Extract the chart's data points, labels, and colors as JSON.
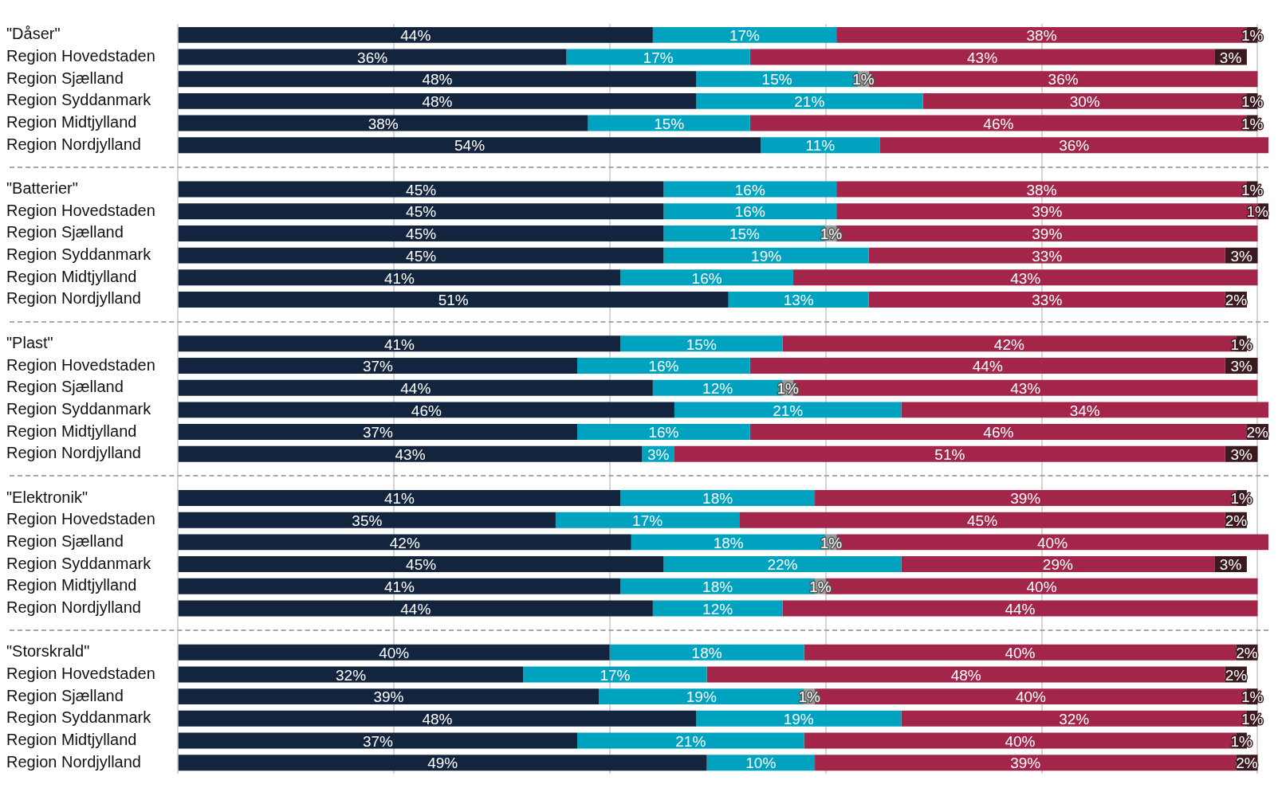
{
  "chart_data": {
    "type": "bar",
    "orientation": "horizontal",
    "stacked": true,
    "categories": [
      "\"Dåser\"",
      "Region Hovedstaden",
      "Region Sjælland",
      "Region Syddanmark",
      "Region Midtjylland",
      "Region Nordjylland",
      null,
      "\"Batterier\"",
      "Region Hovedstaden",
      "Region Sjælland",
      "Region Syddanmark",
      "Region Midtjylland",
      "Region Nordjylland",
      null,
      "\"Plast\"",
      "Region Hovedstaden",
      "Region Sjælland",
      "Region Syddanmark",
      "Region Midtjylland",
      "Region Nordjylland",
      null,
      "\"Elektronik\"",
      "Region Hovedstaden",
      "Region Sjælland",
      "Region Syddanmark",
      "Region Midtjylland",
      "Region Nordjylland",
      null,
      "\"Storskrald\"",
      "Region Hovedstaden",
      "Region Sjælland",
      "Region Syddanmark",
      "Region Midtjylland",
      "Region Nordjylland"
    ],
    "series": [
      {
        "color": "#13243f",
        "values": [
          44,
          36,
          48,
          48,
          38,
          54,
          null,
          45,
          45,
          45,
          45,
          41,
          51,
          null,
          41,
          37,
          44,
          46,
          37,
          43,
          null,
          41,
          35,
          42,
          45,
          41,
          44,
          null,
          40,
          32,
          39,
          48,
          37,
          49
        ],
        "value_labels": [
          "44%",
          "36%",
          "48%",
          "48%",
          "38%",
          "54%",
          null,
          "45%",
          "45%",
          "45%",
          "45%",
          "41%",
          "51%",
          null,
          "41%",
          "37%",
          "44%",
          "46%",
          "37%",
          "43%",
          null,
          "41%",
          "35%",
          "42%",
          "45%",
          "41%",
          "44%",
          null,
          "40%",
          "32%",
          "39%",
          "48%",
          "37%",
          "49%"
        ]
      },
      {
        "color": "#00a3bf",
        "values": [
          17,
          17,
          15,
          21,
          15,
          11,
          null,
          16,
          16,
          15,
          19,
          16,
          13,
          null,
          15,
          16,
          12,
          21,
          16,
          3,
          null,
          18,
          17,
          18,
          22,
          18,
          12,
          null,
          18,
          17,
          19,
          19,
          21,
          10
        ],
        "value_labels": [
          "17%",
          "17%",
          "15%",
          "21%",
          "15%",
          "11%",
          null,
          "16%",
          "16%",
          "15%",
          "19%",
          "16%",
          "13%",
          null,
          "15%",
          "16%",
          "12%",
          "21%",
          "16%",
          "3%",
          null,
          "18%",
          "17%",
          "18%",
          "22%",
          "18%",
          "12%",
          null,
          "18%",
          "17%",
          "19%",
          "19%",
          "21%",
          "10%"
        ]
      },
      {
        "color": "#9a9a9a",
        "values": [
          null,
          null,
          1,
          null,
          null,
          null,
          null,
          null,
          null,
          1,
          null,
          null,
          null,
          null,
          null,
          null,
          1,
          null,
          null,
          null,
          null,
          null,
          null,
          1,
          null,
          1,
          null,
          null,
          null,
          null,
          1,
          null,
          null,
          null
        ],
        "value_labels": [
          null,
          null,
          "1%",
          null,
          null,
          null,
          null,
          null,
          null,
          "1%",
          null,
          null,
          null,
          null,
          null,
          null,
          "1%",
          null,
          null,
          null,
          null,
          null,
          null,
          "1%",
          null,
          "1%",
          null,
          null,
          null,
          null,
          "1%",
          null,
          null,
          null
        ]
      },
      {
        "color": "#a3264a",
        "values": [
          38,
          43,
          36,
          30,
          46,
          36,
          null,
          38,
          39,
          39,
          33,
          43,
          33,
          null,
          42,
          44,
          43,
          34,
          46,
          51,
          null,
          39,
          45,
          40,
          29,
          40,
          44,
          null,
          40,
          48,
          40,
          32,
          40,
          39
        ],
        "value_labels": [
          "38%",
          "43%",
          "36%",
          "30%",
          "46%",
          "36%",
          null,
          "38%",
          "39%",
          "39%",
          "33%",
          "43%",
          "33%",
          null,
          "42%",
          "44%",
          "43%",
          "34%",
          "46%",
          "51%",
          null,
          "39%",
          "45%",
          "40%",
          "29%",
          "40%",
          "44%",
          null,
          "40%",
          "48%",
          "40%",
          "32%",
          "40%",
          "39%"
        ]
      },
      {
        "color": "#3b1a1f",
        "values": [
          1,
          3,
          null,
          1,
          1,
          null,
          null,
          1,
          1,
          null,
          3,
          null,
          2,
          null,
          1,
          3,
          null,
          null,
          2,
          3,
          null,
          1,
          2,
          null,
          3,
          null,
          null,
          null,
          2,
          2,
          1,
          1,
          1,
          2
        ],
        "value_labels": [
          "1%",
          "3%",
          null,
          "1%",
          "1%",
          null,
          null,
          "1%",
          "1%",
          null,
          "3%",
          null,
          "2%",
          null,
          "1%",
          "3%",
          null,
          null,
          "2%",
          "3%",
          null,
          "1%",
          "2%",
          null,
          "3%",
          null,
          null,
          null,
          "2%",
          "2%",
          "1%",
          "1%",
          "1%",
          "2%"
        ]
      }
    ],
    "xlim": [
      0,
      101
    ],
    "xticks": [
      {
        "value": 0,
        "label": null
      },
      {
        "value": 20,
        "label": null
      },
      {
        "value": 40,
        "label": null
      },
      {
        "value": 60,
        "label": null
      },
      {
        "value": 80,
        "label": null
      },
      {
        "value": 100,
        "label": null
      }
    ],
    "grid": "x",
    "legend": false,
    "tick_labels": "y"
  }
}
